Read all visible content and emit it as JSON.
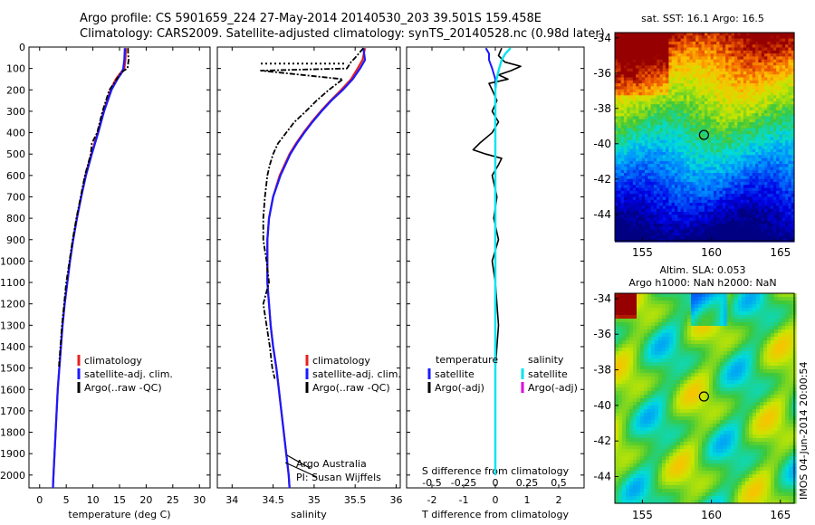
{
  "header": {
    "line1": "Argo profile: CS 5901659_224 27-May-2014 20140530_203 39.501S 159.458E",
    "line2": "Climatology: CARS2009. Satellite-adjusted climatology: synTS_20140528.nc (0.98d later)"
  },
  "colors": {
    "climatology": "#e8211f",
    "satellite_adj": "#1a1aff",
    "argo": "#000000",
    "salinity_sat": "#00e5ee",
    "salinity_argo": "#e000e0"
  },
  "depth_ticks": [
    0,
    100,
    200,
    300,
    400,
    500,
    600,
    700,
    800,
    900,
    1000,
    1100,
    1200,
    1300,
    1400,
    1500,
    1600,
    1700,
    1800,
    1900,
    2000
  ],
  "chart_data": [
    {
      "type": "line",
      "xlabel": "temperature (deg C)",
      "xticks": [
        0,
        5,
        10,
        15,
        20,
        25,
        30
      ],
      "xlim": [
        -2,
        32
      ],
      "ylim": [
        2060,
        0
      ],
      "legend": [
        "climatology",
        "satellite-adj. clim.",
        "Argo(..raw -QC)"
      ],
      "series": [
        {
          "name": "climatology",
          "y": [
            5,
            60,
            100,
            120,
            150,
            200,
            300,
            400,
            500,
            600,
            700,
            800,
            900,
            1000,
            1100,
            1200,
            1300,
            1400,
            1500,
            1600,
            1700,
            1800,
            1900,
            2000,
            2060
          ],
          "values": [
            16.2,
            16.1,
            15.9,
            15.2,
            14.3,
            13.3,
            12.0,
            10.9,
            9.7,
            8.6,
            7.8,
            7.0,
            6.3,
            5.7,
            5.2,
            4.7,
            4.3,
            4.0,
            3.7,
            3.4,
            3.2,
            3.0,
            2.8,
            2.6,
            2.5
          ]
        },
        {
          "name": "satellite-adj. clim.",
          "y": [
            5,
            60,
            100,
            120,
            150,
            200,
            300,
            400,
            500,
            600,
            700,
            800,
            900,
            1000,
            1100,
            1200,
            1300,
            1400,
            1500,
            1600,
            1700,
            1800,
            1900,
            2000,
            2060
          ],
          "values": [
            16.0,
            15.9,
            15.7,
            15.4,
            14.6,
            13.5,
            12.1,
            11.0,
            9.8,
            8.7,
            7.8,
            7.0,
            6.3,
            5.7,
            5.2,
            4.7,
            4.3,
            4.0,
            3.7,
            3.4,
            3.2,
            3.0,
            2.8,
            2.6,
            2.5
          ]
        },
        {
          "name": "Argo(..raw -QC)",
          "y": [
            5,
            30,
            60,
            100,
            110,
            130,
            160,
            200,
            300,
            400,
            450,
            500,
            600,
            700,
            800,
            900,
            1000,
            1100,
            1200,
            1300,
            1400,
            1500
          ],
          "values": [
            16.6,
            16.6,
            16.7,
            16.5,
            15.8,
            15.0,
            14.2,
            13.1,
            11.8,
            10.8,
            9.8,
            9.6,
            8.5,
            7.7,
            6.9,
            6.2,
            5.6,
            5.0,
            4.6,
            4.2,
            3.9,
            3.6
          ]
        }
      ]
    },
    {
      "type": "line",
      "xlabel": "salinity",
      "xticks": [
        34,
        34.5,
        35,
        35.5,
        36
      ],
      "xlim": [
        33.82,
        36.05
      ],
      "ylim": [
        2060,
        0
      ],
      "legend": [
        "climatology",
        "satellite-adj. clim.",
        "Argo(..raw -QC)"
      ],
      "annotations": [
        "Argo Australia",
        "PI: Susan Wijffels"
      ],
      "series": [
        {
          "name": "climatology",
          "y": [
            5,
            60,
            100,
            150,
            200,
            250,
            300,
            350,
            400,
            450,
            500,
            600,
            700,
            800,
            900,
            1000,
            1100,
            1200,
            1300,
            1400,
            1500,
            1600,
            1700,
            1800,
            1900,
            2000,
            2060
          ],
          "values": [
            35.62,
            35.59,
            35.53,
            35.45,
            35.33,
            35.2,
            35.08,
            34.97,
            34.87,
            34.78,
            34.7,
            34.58,
            34.5,
            34.45,
            34.43,
            34.43,
            34.43,
            34.45,
            34.47,
            34.5,
            34.54,
            34.57,
            34.6,
            34.63,
            34.66,
            34.69,
            34.7
          ]
        },
        {
          "name": "satellite-adj. clim.",
          "y": [
            5,
            60,
            100,
            150,
            200,
            250,
            300,
            350,
            400,
            450,
            500,
            600,
            700,
            800,
            900,
            1000,
            1100,
            1200,
            1300,
            1400,
            1500,
            1600,
            1700,
            1800,
            1900,
            2000,
            2060
          ],
          "values": [
            35.6,
            35.62,
            35.56,
            35.47,
            35.35,
            35.21,
            35.09,
            34.98,
            34.88,
            34.79,
            34.71,
            34.59,
            34.5,
            34.45,
            34.43,
            34.43,
            34.43,
            34.45,
            34.47,
            34.5,
            34.54,
            34.57,
            34.6,
            34.63,
            34.66,
            34.69,
            34.7
          ]
        },
        {
          "name": "Argo(..raw -QC)",
          "y": [
            5,
            50,
            70,
            100,
            110,
            150,
            200,
            250,
            300,
            350,
            400,
            450,
            500,
            550,
            600,
            700,
            800,
            900,
            1000,
            1100,
            1200,
            1300,
            1400,
            1500,
            1550
          ],
          "values": [
            35.6,
            35.5,
            35.45,
            35.4,
            34.35,
            35.35,
            35.18,
            35.03,
            34.9,
            34.76,
            34.66,
            34.56,
            34.5,
            34.46,
            34.43,
            34.4,
            34.38,
            34.38,
            34.42,
            34.45,
            34.38,
            34.42,
            34.46,
            34.49,
            34.52
          ]
        }
      ]
    },
    {
      "type": "line",
      "xlabel": "T difference from climatology",
      "xticks": [
        -2,
        -1,
        0,
        1,
        2
      ],
      "xlim": [
        -2.8,
        2.8
      ],
      "top_label": "S difference from climatology",
      "top_ticks": [
        "-0.5",
        "-0.25",
        "0",
        "0.25",
        "0.5"
      ],
      "ylim": [
        2060,
        0
      ],
      "legend_left_title": "temperature",
      "legend_right_title": "salinity",
      "legend_left": [
        "satellite",
        "Argo(-adj)"
      ],
      "legend_right": [
        "satellite",
        "Argo(-adj)"
      ],
      "series": [
        {
          "name": "temperature satellite",
          "y": [
            5,
            30,
            60,
            100,
            150,
            200,
            400,
            800,
            1200,
            1600,
            2000
          ],
          "values": [
            -0.3,
            -0.2,
            -0.2,
            -0.1,
            0,
            0,
            0,
            0,
            0,
            0,
            0
          ]
        },
        {
          "name": "temperature Argo(-adj)",
          "y": [
            5,
            40,
            70,
            90,
            110,
            130,
            150,
            170,
            200,
            250,
            300,
            350,
            400,
            450,
            480,
            500,
            520,
            550,
            600,
            700,
            800,
            900,
            1000,
            1100,
            1200,
            1300,
            1400,
            1500
          ],
          "values": [
            0.2,
            0.1,
            0.3,
            0.8,
            0.5,
            0.1,
            0.4,
            -0.2,
            -0.1,
            0.05,
            -0.1,
            0.1,
            -0.1,
            -0.5,
            -0.7,
            -0.3,
            0.2,
            0.1,
            -0.1,
            0.05,
            -0.05,
            0.1,
            -0.1,
            0.0,
            0.05,
            0.1,
            0.05,
            0.0
          ]
        },
        {
          "name": "salinity satellite",
          "y": [
            5,
            30,
            60,
            100,
            150,
            200,
            300,
            400,
            600,
            800,
            1000,
            1200,
            1400,
            1600,
            1800,
            2000
          ],
          "values": [
            0.12,
            0.08,
            0.05,
            0.03,
            0.01,
            0.0,
            0.0,
            0.0,
            0.0,
            0.0,
            0.0,
            0.0,
            0.0,
            0.0,
            0.0,
            0.0
          ]
        }
      ]
    },
    {
      "type": "heatmap",
      "title": "sat. SST: 16.1  Argo: 16.5",
      "xticks": [
        155,
        160,
        165
      ],
      "yticks": [
        -34,
        -36,
        -38,
        -40,
        -42,
        -44
      ],
      "xlim": [
        153,
        166
      ],
      "ylim": [
        -45.5,
        -33.7
      ],
      "marker": [
        159.46,
        -39.5
      ]
    },
    {
      "type": "heatmap",
      "title_line1": "Altim. SLA: 0.053",
      "title_line2": "Argo h1000: NaN h2000: NaN",
      "xticks": [
        155,
        160,
        165
      ],
      "yticks": [
        -34,
        -36,
        -38,
        -40,
        -42,
        -44
      ],
      "xlim": [
        153,
        166
      ],
      "ylim": [
        -45.5,
        -33.7
      ],
      "marker": [
        159.46,
        -39.5
      ],
      "side_label": "IMOS 04-Jun-2014 20:00:54"
    }
  ]
}
